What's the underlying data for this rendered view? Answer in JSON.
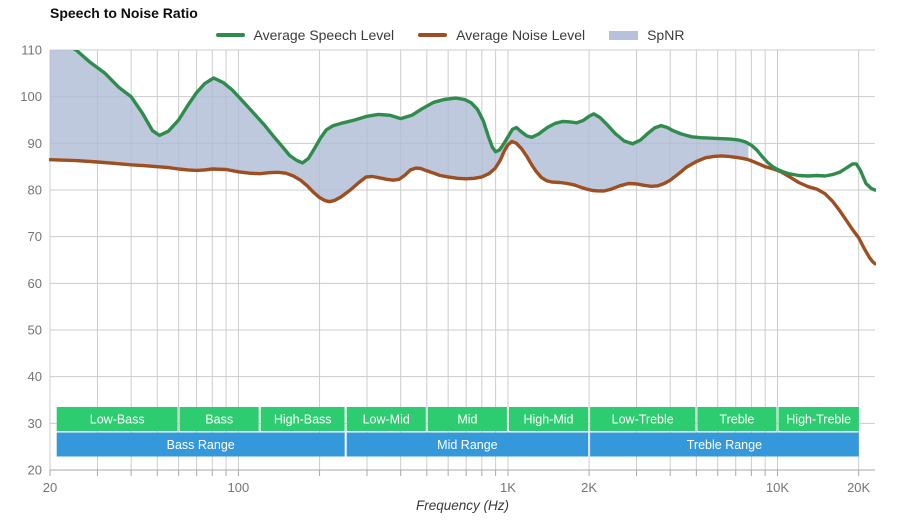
{
  "title": "Speech to Noise Ratio",
  "xlabel": "Frequency (Hz)",
  "legend": [
    {
      "label": "Average Speech Level",
      "type": "line",
      "color": "#2f8c4c"
    },
    {
      "label": "Average Noise Level",
      "type": "line",
      "color": "#9e4f22"
    },
    {
      "label": "SpNR",
      "type": "area",
      "color": "#b7c2d8"
    }
  ],
  "colors": {
    "speech": "#2f8c4c",
    "noise": "#9e4f22",
    "spnr_fill": "#aebbd4",
    "band_green": "#2ecc71",
    "band_blue": "#3498db",
    "grid": "#cccccc",
    "axis": "#a8a8a8",
    "tick_text": "#757575",
    "band_text": "#ffffff"
  },
  "chart_data": {
    "type": "line",
    "title": "Speech to Noise Ratio",
    "xlabel": "Frequency (Hz)",
    "ylabel": "",
    "x_scale": "log",
    "x_domain": [
      20,
      23000
    ],
    "y_domain": [
      20,
      110
    ],
    "grid": true,
    "legend_position": "top-center",
    "y_ticks": [
      110,
      100,
      90,
      80,
      70,
      60,
      50,
      40,
      30,
      20
    ],
    "y_gridlines": [
      110,
      100,
      90,
      80,
      70,
      60,
      50,
      40,
      30
    ],
    "x_ticks": [
      {
        "f": 20,
        "label": "20"
      },
      {
        "f": 100,
        "label": "100"
      },
      {
        "f": 1000,
        "label": "1K"
      },
      {
        "f": 2000,
        "label": "2K"
      },
      {
        "f": 10000,
        "label": "10K"
      },
      {
        "f": 20000,
        "label": "20K"
      }
    ],
    "x_gridlines": [
      30,
      40,
      50,
      60,
      70,
      80,
      90,
      100,
      200,
      300,
      400,
      500,
      600,
      700,
      800,
      900,
      1000,
      2000,
      3000,
      4000,
      5000,
      6000,
      7000,
      8000,
      9000,
      10000,
      20000
    ],
    "x_tick_marks": [
      20,
      30,
      40,
      50,
      60,
      70,
      80,
      90,
      100,
      200,
      300,
      400,
      500,
      600,
      700,
      800,
      900,
      1000,
      2000,
      3000,
      4000,
      5000,
      6000,
      7000,
      8000,
      9000,
      10000,
      20000
    ],
    "fill": {
      "name": "SpNR",
      "between": [
        "Average Speech Level",
        "Average Noise Level"
      ],
      "max_freq": 7800
    },
    "series": [
      {
        "name": "Average Speech Level",
        "points": [
          [
            20,
            113.5
          ],
          [
            22,
            112
          ],
          [
            25,
            110
          ],
          [
            28,
            107.5
          ],
          [
            32,
            105
          ],
          [
            36,
            102
          ],
          [
            40,
            100
          ],
          [
            44,
            96.5
          ],
          [
            48,
            92.7
          ],
          [
            51,
            91.7
          ],
          [
            55,
            92.6
          ],
          [
            60,
            95
          ],
          [
            65,
            98.2
          ],
          [
            70,
            100.9
          ],
          [
            75,
            102.8
          ],
          [
            81,
            104
          ],
          [
            88,
            103
          ],
          [
            95,
            101.4
          ],
          [
            105,
            98.7
          ],
          [
            115,
            96.2
          ],
          [
            125,
            93.9
          ],
          [
            135,
            91.5
          ],
          [
            145,
            89.4
          ],
          [
            155,
            87.4
          ],
          [
            165,
            86.3
          ],
          [
            173,
            85.8
          ],
          [
            182,
            86.8
          ],
          [
            192,
            89
          ],
          [
            202,
            91.2
          ],
          [
            212,
            92.9
          ],
          [
            225,
            93.8
          ],
          [
            245,
            94.4
          ],
          [
            270,
            95
          ],
          [
            300,
            95.8
          ],
          [
            330,
            96.2
          ],
          [
            365,
            96
          ],
          [
            400,
            95.3
          ],
          [
            440,
            96
          ],
          [
            480,
            97.4
          ],
          [
            530,
            98.8
          ],
          [
            580,
            99.4
          ],
          [
            640,
            99.7
          ],
          [
            690,
            99.4
          ],
          [
            730,
            98.7
          ],
          [
            770,
            97.3
          ],
          [
            810,
            94.8
          ],
          [
            845,
            91.6
          ],
          [
            875,
            89.2
          ],
          [
            900,
            88.2
          ],
          [
            930,
            88.6
          ],
          [
            965,
            89.9
          ],
          [
            1000,
            91.4
          ],
          [
            1040,
            93
          ],
          [
            1075,
            93.4
          ],
          [
            1125,
            92.4
          ],
          [
            1175,
            91.6
          ],
          [
            1225,
            91.3
          ],
          [
            1300,
            92
          ],
          [
            1400,
            93.4
          ],
          [
            1500,
            94.3
          ],
          [
            1600,
            94.7
          ],
          [
            1700,
            94.6
          ],
          [
            1800,
            94.4
          ],
          [
            1900,
            94.9
          ],
          [
            2000,
            95.8
          ],
          [
            2080,
            96.3
          ],
          [
            2200,
            95.5
          ],
          [
            2350,
            93.8
          ],
          [
            2500,
            92.1
          ],
          [
            2700,
            90.5
          ],
          [
            2900,
            89.9
          ],
          [
            3100,
            90.7
          ],
          [
            3300,
            92.1
          ],
          [
            3500,
            93.3
          ],
          [
            3700,
            93.8
          ],
          [
            3900,
            93.4
          ],
          [
            4100,
            92.7
          ],
          [
            4400,
            92
          ],
          [
            4800,
            91.4
          ],
          [
            5200,
            91.2
          ],
          [
            5700,
            91.1
          ],
          [
            6200,
            91
          ],
          [
            6700,
            90.9
          ],
          [
            7200,
            90.7
          ],
          [
            7600,
            90.3
          ],
          [
            8000,
            89.6
          ],
          [
            8400,
            88.5
          ],
          [
            8800,
            87.1
          ],
          [
            9200,
            85.9
          ],
          [
            9600,
            85
          ],
          [
            10000,
            84.4
          ],
          [
            10500,
            83.9
          ],
          [
            11000,
            83.5
          ],
          [
            12000,
            83.1
          ],
          [
            13000,
            83
          ],
          [
            14000,
            83.1
          ],
          [
            15000,
            83
          ],
          [
            16000,
            83.3
          ],
          [
            17000,
            83.8
          ],
          [
            18000,
            84.7
          ],
          [
            19000,
            85.6
          ],
          [
            19600,
            85.6
          ],
          [
            20300,
            84.2
          ],
          [
            21300,
            81.4
          ],
          [
            22300,
            80.3
          ],
          [
            23000,
            80
          ]
        ]
      },
      {
        "name": "Average Noise Level",
        "points": [
          [
            20,
            86.5
          ],
          [
            25,
            86.3
          ],
          [
            30,
            86
          ],
          [
            35,
            85.7
          ],
          [
            40,
            85.4
          ],
          [
            45,
            85.2
          ],
          [
            50,
            85
          ],
          [
            55,
            84.8
          ],
          [
            60,
            84.5
          ],
          [
            65,
            84.3
          ],
          [
            70,
            84.2
          ],
          [
            75,
            84.3
          ],
          [
            80,
            84.5
          ],
          [
            90,
            84.4
          ],
          [
            100,
            83.9
          ],
          [
            110,
            83.6
          ],
          [
            120,
            83.5
          ],
          [
            130,
            83.7
          ],
          [
            140,
            83.8
          ],
          [
            150,
            83.6
          ],
          [
            160,
            83
          ],
          [
            170,
            82.1
          ],
          [
            180,
            80.9
          ],
          [
            190,
            79.5
          ],
          [
            200,
            78.4
          ],
          [
            210,
            77.7
          ],
          [
            218,
            77.5
          ],
          [
            228,
            77.8
          ],
          [
            240,
            78.5
          ],
          [
            260,
            80
          ],
          [
            280,
            81.6
          ],
          [
            298,
            82.8
          ],
          [
            315,
            82.9
          ],
          [
            335,
            82.6
          ],
          [
            355,
            82.3
          ],
          [
            375,
            82.1
          ],
          [
            395,
            82.3
          ],
          [
            415,
            83.2
          ],
          [
            435,
            84.3
          ],
          [
            455,
            84.7
          ],
          [
            475,
            84.6
          ],
          [
            495,
            84.2
          ],
          [
            525,
            83.7
          ],
          [
            560,
            83.1
          ],
          [
            600,
            82.8
          ],
          [
            650,
            82.5
          ],
          [
            700,
            82.4
          ],
          [
            750,
            82.5
          ],
          [
            800,
            82.8
          ],
          [
            850,
            83.5
          ],
          [
            895,
            84.6
          ],
          [
            935,
            86.3
          ],
          [
            970,
            88.4
          ],
          [
            1000,
            89.7
          ],
          [
            1035,
            90.4
          ],
          [
            1075,
            90
          ],
          [
            1125,
            88.8
          ],
          [
            1175,
            87.2
          ],
          [
            1225,
            85.4
          ],
          [
            1275,
            83.9
          ],
          [
            1330,
            82.7
          ],
          [
            1390,
            82
          ],
          [
            1460,
            81.7
          ],
          [
            1560,
            81.6
          ],
          [
            1660,
            81.4
          ],
          [
            1760,
            81.1
          ],
          [
            1860,
            80.6
          ],
          [
            1960,
            80.2
          ],
          [
            2060,
            79.9
          ],
          [
            2160,
            79.8
          ],
          [
            2280,
            79.8
          ],
          [
            2420,
            80.2
          ],
          [
            2600,
            80.9
          ],
          [
            2800,
            81.4
          ],
          [
            3000,
            81.3
          ],
          [
            3200,
            81
          ],
          [
            3400,
            80.8
          ],
          [
            3600,
            80.9
          ],
          [
            3800,
            81.4
          ],
          [
            4000,
            82.1
          ],
          [
            4300,
            83.5
          ],
          [
            4600,
            84.9
          ],
          [
            5000,
            86.1
          ],
          [
            5400,
            86.9
          ],
          [
            5800,
            87.2
          ],
          [
            6200,
            87.3
          ],
          [
            6600,
            87.2
          ],
          [
            7000,
            87
          ],
          [
            7400,
            86.8
          ],
          [
            7800,
            86.5
          ],
          [
            8200,
            86
          ],
          [
            8600,
            85.5
          ],
          [
            9000,
            85
          ],
          [
            9400,
            84.7
          ],
          [
            9800,
            84.4
          ],
          [
            10300,
            83.9
          ],
          [
            10800,
            83.2
          ],
          [
            11400,
            82.4
          ],
          [
            12000,
            81.6
          ],
          [
            13000,
            80.7
          ],
          [
            14000,
            80.2
          ],
          [
            15000,
            79.2
          ],
          [
            16000,
            77.6
          ],
          [
            17000,
            75.6
          ],
          [
            18000,
            73.5
          ],
          [
            19000,
            71.5
          ],
          [
            20000,
            69.8
          ],
          [
            21000,
            67.4
          ],
          [
            22000,
            65.4
          ],
          [
            22600,
            64.6
          ],
          [
            23000,
            64.2
          ]
        ]
      }
    ],
    "bands": {
      "sub_ranges": [
        {
          "label": "Low-Bass",
          "from": 21,
          "to": 60
        },
        {
          "label": "Bass",
          "from": 60,
          "to": 120
        },
        {
          "label": "High-Bass",
          "from": 120,
          "to": 250
        },
        {
          "label": "Low-Mid",
          "from": 250,
          "to": 500
        },
        {
          "label": "Mid",
          "from": 500,
          "to": 1000
        },
        {
          "label": "High-Mid",
          "from": 1000,
          "to": 2000
        },
        {
          "label": "Low-Treble",
          "from": 2000,
          "to": 5000
        },
        {
          "label": "Treble",
          "from": 5000,
          "to": 10000
        },
        {
          "label": "High-Treble",
          "from": 10000,
          "to": 20200
        }
      ],
      "main_ranges": [
        {
          "label": "Bass Range",
          "from": 21,
          "to": 250
        },
        {
          "label": "Mid Range",
          "from": 250,
          "to": 2000
        },
        {
          "label": "Treble Range",
          "from": 2000,
          "to": 20200
        }
      ]
    }
  }
}
